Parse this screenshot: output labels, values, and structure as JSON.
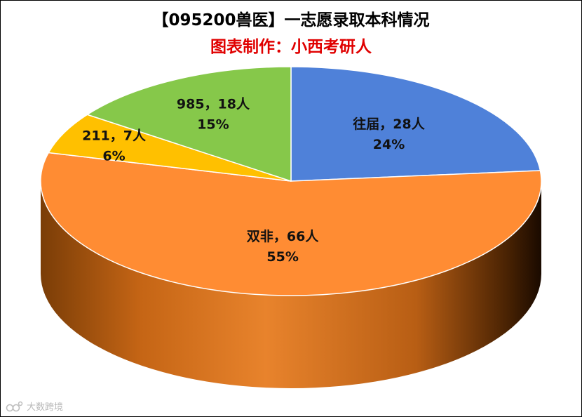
{
  "chart_data": {
    "type": "pie",
    "title": "【095200兽医】一志愿录取本科情况",
    "subtitle": "图表制作：小西考研人",
    "slices": [
      {
        "name": "往届",
        "count": 28,
        "percent": 24,
        "label": "往届，28人",
        "percent_label": "24%",
        "color": "#4F81D9"
      },
      {
        "name": "双非",
        "count": 66,
        "percent": 55,
        "label": "双非，66人",
        "percent_label": "55%",
        "color": "#FF8C33"
      },
      {
        "name": "211",
        "count": 7,
        "percent": 6,
        "label": "211，7人",
        "percent_label": "6%",
        "color": "#FFC000"
      },
      {
        "name": "985",
        "count": 18,
        "percent": 15,
        "label": "985，18人",
        "percent_label": "15%",
        "color": "#86C84A"
      }
    ],
    "legend": "none",
    "style": "3d"
  },
  "colors": {
    "title": "#000000",
    "subtitle": "#E00000"
  },
  "watermark": {
    "text": "大数跨境"
  }
}
